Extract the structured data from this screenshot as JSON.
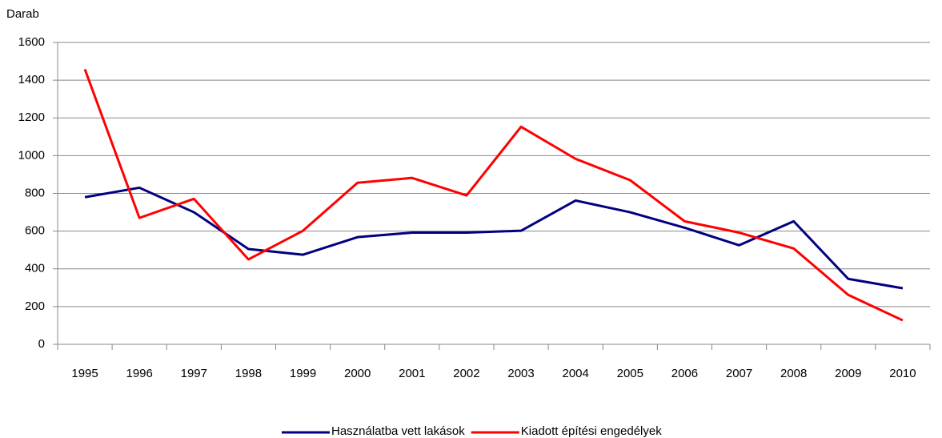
{
  "chart_data": {
    "type": "line",
    "y_label": "Darab",
    "categories": [
      "1995",
      "1996",
      "1997",
      "1998",
      "1999",
      "2000",
      "2001",
      "2002",
      "2003",
      "2004",
      "2005",
      "2006",
      "2007",
      "2008",
      "2009",
      "2010"
    ],
    "series": [
      {
        "name": "Használatba vett lakások",
        "color": "#000080",
        "values": [
          780,
          830,
          700,
          505,
          475,
          568,
          592,
          592,
          602,
          762,
          700,
          618,
          525,
          652,
          347,
          297
        ]
      },
      {
        "name": "Kiadott építési engedélyek",
        "color": "#ff0000",
        "values": [
          1458,
          670,
          771,
          450,
          602,
          856,
          882,
          789,
          1153,
          983,
          870,
          652,
          592,
          508,
          262,
          127
        ]
      }
    ],
    "ylim": [
      0,
      1600
    ],
    "yticks": [
      0,
      200,
      400,
      600,
      800,
      1000,
      1200,
      1400,
      1600
    ],
    "grid": true,
    "legend": "bottom"
  }
}
